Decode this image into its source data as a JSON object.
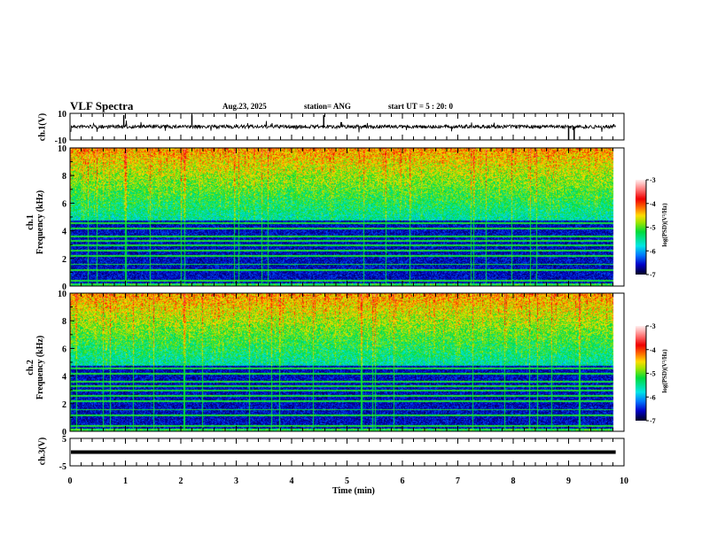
{
  "header": {
    "title": "VLF Spectra",
    "date": "Aug.23, 2025",
    "station": "station= ANG",
    "start": "start  UT =   5 : 20: 0"
  },
  "chart_data": [
    {
      "type": "line",
      "name": "ch.1 waveform",
      "ylabel": "ch.1(V)",
      "ylim": [
        -10,
        10
      ],
      "yticks": [
        "10",
        "-10"
      ],
      "xlim": [
        0,
        10
      ]
    },
    {
      "type": "heatmap",
      "name": "ch.1 spectrogram",
      "ylabel": "ch.1\nFrequency (kHz)",
      "ylabel_ch": "ch.1",
      "ylabel_freq": "Frequency (kHz)",
      "ylim": [
        0,
        10
      ],
      "yticks": [
        "0",
        "2",
        "4",
        "6",
        "8",
        "10"
      ],
      "xlim": [
        0,
        10
      ],
      "data_end_min": 9.8,
      "colorbar": {
        "label": "log(PSD)(V²/Hz)",
        "range": [
          -7,
          -3
        ],
        "ticks": [
          "-3",
          "-4",
          "-5",
          "-6",
          "-7"
        ]
      }
    },
    {
      "type": "heatmap",
      "name": "ch.2 spectrogram",
      "ylabel_ch": "ch.2",
      "ylabel_freq": "Frequency (kHz)",
      "ylim": [
        0,
        10
      ],
      "yticks": [
        "0",
        "2",
        "4",
        "6",
        "8",
        "10"
      ],
      "xlim": [
        0,
        10
      ],
      "data_end_min": 9.8,
      "colorbar": {
        "label": "log(PSD)(V²/Hz)",
        "range": [
          -7,
          -3
        ],
        "ticks": [
          "-3",
          "-4",
          "-5",
          "-6",
          "-7"
        ]
      }
    },
    {
      "type": "line",
      "name": "ch.3 waveform",
      "ylabel": "ch.3(V)",
      "ylim": [
        -5,
        5
      ],
      "yticks": [
        "5",
        "-5"
      ],
      "value": 0,
      "xlim": [
        0,
        10
      ]
    }
  ],
  "xaxis": {
    "label": "Time (min)",
    "ticks": [
      "0",
      "1",
      "2",
      "3",
      "4",
      "5",
      "6",
      "7",
      "8",
      "9",
      "10"
    ]
  },
  "colors": {
    "line": "#000000"
  }
}
